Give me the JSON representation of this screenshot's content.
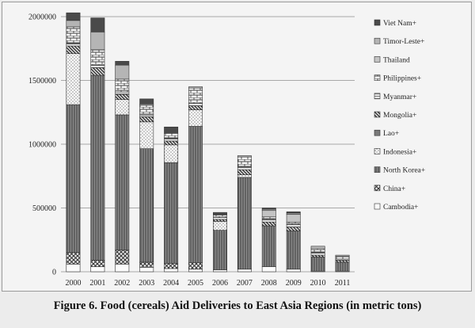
{
  "caption": "Figure 6. Food (cereals) Aid Deliveries to East Asia Regions (in metric tons)",
  "chart_data": {
    "type": "bar",
    "stacked": true,
    "title": "",
    "xlabel": "",
    "ylabel": "",
    "ylim": [
      0,
      2000000
    ],
    "yticks": [
      0,
      500000,
      1000000,
      1500000,
      2000000
    ],
    "grid": true,
    "legend_position": "right",
    "categories": [
      "2000",
      "2001",
      "2002",
      "2003",
      "2004",
      "2005",
      "2006",
      "2007",
      "2008",
      "2009",
      "2010",
      "2011"
    ],
    "series": [
      {
        "name": "Cambodia+",
        "color": "#f7f7f7",
        "pattern": "blank",
        "values": [
          60000,
          40000,
          60000,
          35000,
          25000,
          20000,
          15000,
          20000,
          40000,
          20000,
          5000,
          5000
        ]
      },
      {
        "name": "China+",
        "color": "#555555",
        "pattern": "crosshatch",
        "values": [
          90000,
          50000,
          110000,
          40000,
          40000,
          50000,
          0,
          0,
          0,
          0,
          0,
          0
        ]
      },
      {
        "name": "North Korea+",
        "color": "#666666",
        "pattern": "vertical",
        "values": [
          1160000,
          1450000,
          1060000,
          890000,
          790000,
          1070000,
          310000,
          720000,
          320000,
          300000,
          110000,
          70000
        ]
      },
      {
        "name": "Indonesia+",
        "color": "#ffffff",
        "pattern": "dots",
        "values": [
          400000,
          0,
          120000,
          210000,
          140000,
          130000,
          70000,
          20000,
          0,
          0,
          0,
          0
        ]
      },
      {
        "name": "Lao+",
        "color": "#888888",
        "pattern": "solid-gray",
        "values": [
          0,
          0,
          0,
          0,
          0,
          0,
          0,
          0,
          0,
          0,
          0,
          0
        ]
      },
      {
        "name": "Mongolia+",
        "color": "#333333",
        "pattern": "diagonal",
        "values": [
          60000,
          60000,
          40000,
          40000,
          30000,
          30000,
          15000,
          40000,
          30000,
          30000,
          15000,
          15000
        ]
      },
      {
        "name": "Myanmar+",
        "color": "#cccccc",
        "pattern": "horizontal",
        "values": [
          20000,
          20000,
          20000,
          20000,
          20000,
          20000,
          15000,
          20000,
          20000,
          20000,
          20000,
          10000
        ]
      },
      {
        "name": "Philippines+",
        "color": "#ffffff",
        "pattern": "bricks",
        "values": [
          130000,
          120000,
          100000,
          70000,
          40000,
          120000,
          20000,
          80000,
          20000,
          20000,
          30000,
          20000
        ]
      },
      {
        "name": "Thailand",
        "color": "#c4c4c4",
        "pattern": "solid-lightgray",
        "values": [
          0,
          0,
          0,
          0,
          0,
          0,
          0,
          0,
          50000,
          60000,
          0,
          0
        ]
      },
      {
        "name": "Timor-Leste+",
        "color": "#b5b5b5",
        "pattern": "solid-lightgray",
        "values": [
          50000,
          140000,
          110000,
          10000,
          0,
          10000,
          5000,
          10000,
          10000,
          10000,
          20000,
          10000
        ]
      },
      {
        "name": "Viet Nam+",
        "color": "#505050",
        "pattern": "solid-dark",
        "values": [
          60000,
          110000,
          30000,
          40000,
          50000,
          0,
          15000,
          0,
          10000,
          10000,
          0,
          0
        ]
      }
    ]
  }
}
